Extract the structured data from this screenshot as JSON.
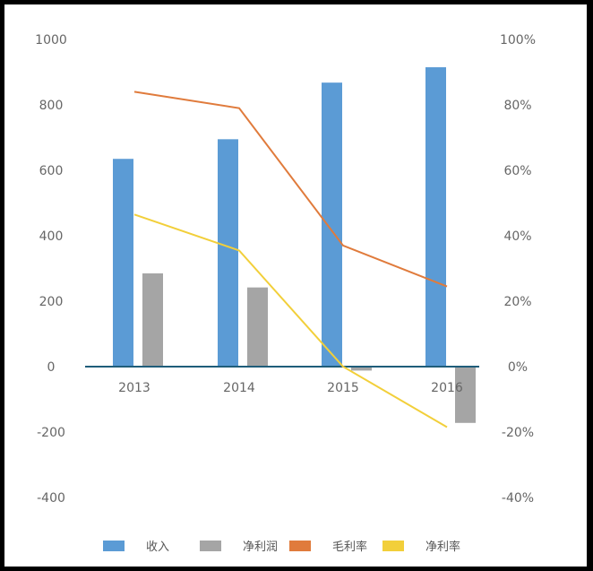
{
  "chart_data": {
    "type": "bar",
    "categories": [
      "2013",
      "2014",
      "2015",
      "2016"
    ],
    "series": [
      {
        "name": "收入",
        "kind": "bar",
        "axis": "left",
        "color": "#5b9bd5",
        "values": [
          635,
          695,
          868,
          915
        ]
      },
      {
        "name": "净利润",
        "kind": "bar",
        "axis": "left",
        "color": "#a5a5a5",
        "values": [
          285,
          242,
          -12,
          -172
        ]
      },
      {
        "name": "毛利率",
        "kind": "line",
        "axis": "right",
        "color": "#e07b3c",
        "values": [
          0.84,
          0.79,
          0.37,
          0.245
        ]
      },
      {
        "name": "净利率",
        "kind": "line",
        "axis": "right",
        "color": "#f2cf3a",
        "values": [
          0.465,
          0.355,
          0.0,
          -0.185
        ]
      }
    ],
    "y_left": {
      "min": -400,
      "max": 1000,
      "ticks": [
        "-400",
        "-200",
        "0",
        "200",
        "400",
        "600",
        "800",
        "1000"
      ]
    },
    "y_right": {
      "min": -0.4,
      "max": 1.0,
      "ticks": [
        "-40%",
        "-20%",
        "0%",
        "20%",
        "40%",
        "60%",
        "80%",
        "100%"
      ]
    },
    "title": "",
    "xlabel": "",
    "ylabel": "",
    "grid": false,
    "legend_position": "bottom",
    "zero_line_color": "#1f5d7a"
  }
}
